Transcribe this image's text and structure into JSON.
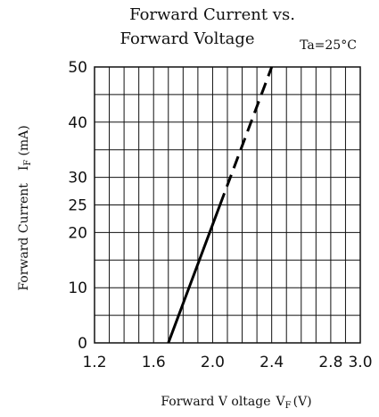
{
  "chart_data": {
    "type": "line",
    "title_line1": "Forward Current vs.",
    "title_line2": "Forward Voltage",
    "condition": "Ta=25°C",
    "xlabel_main": "Forward V oltage",
    "xlabel_symbol": "V",
    "xlabel_sub": "F",
    "xlabel_unit": "(V)",
    "ylabel_main": "Forward Current",
    "ylabel_symbol": "I",
    "ylabel_sub": "F",
    "ylabel_unit": "(mA)",
    "xlim": [
      1.2,
      3.0
    ],
    "ylim": [
      0,
      50
    ],
    "x_ticks": [
      1.2,
      1.6,
      2.0,
      2.4,
      2.8,
      3.0
    ],
    "x_tick_labels": [
      "1.2",
      "1.6",
      "2.0",
      "2.4",
      "2.8",
      "3.0"
    ],
    "y_ticks": [
      0,
      10,
      20,
      25,
      30,
      40,
      50
    ],
    "y_tick_labels": [
      "0",
      "10",
      "20",
      "25",
      "30",
      "40",
      "50"
    ],
    "x_grid": [
      1.2,
      1.3,
      1.4,
      1.5,
      1.6,
      1.7,
      1.8,
      1.9,
      2.0,
      2.1,
      2.2,
      2.3,
      2.4,
      2.5,
      2.6,
      2.7,
      2.8,
      2.9,
      3.0
    ],
    "y_grid": [
      0,
      5,
      10,
      15,
      20,
      25,
      30,
      35,
      40,
      45,
      50
    ],
    "grid": true,
    "series": [
      {
        "style": "solid",
        "x": [
          1.7,
          2.05
        ],
        "y": [
          0,
          25
        ]
      },
      {
        "style": "dashed",
        "x": [
          2.05,
          2.4
        ],
        "y": [
          25,
          50
        ]
      }
    ]
  }
}
